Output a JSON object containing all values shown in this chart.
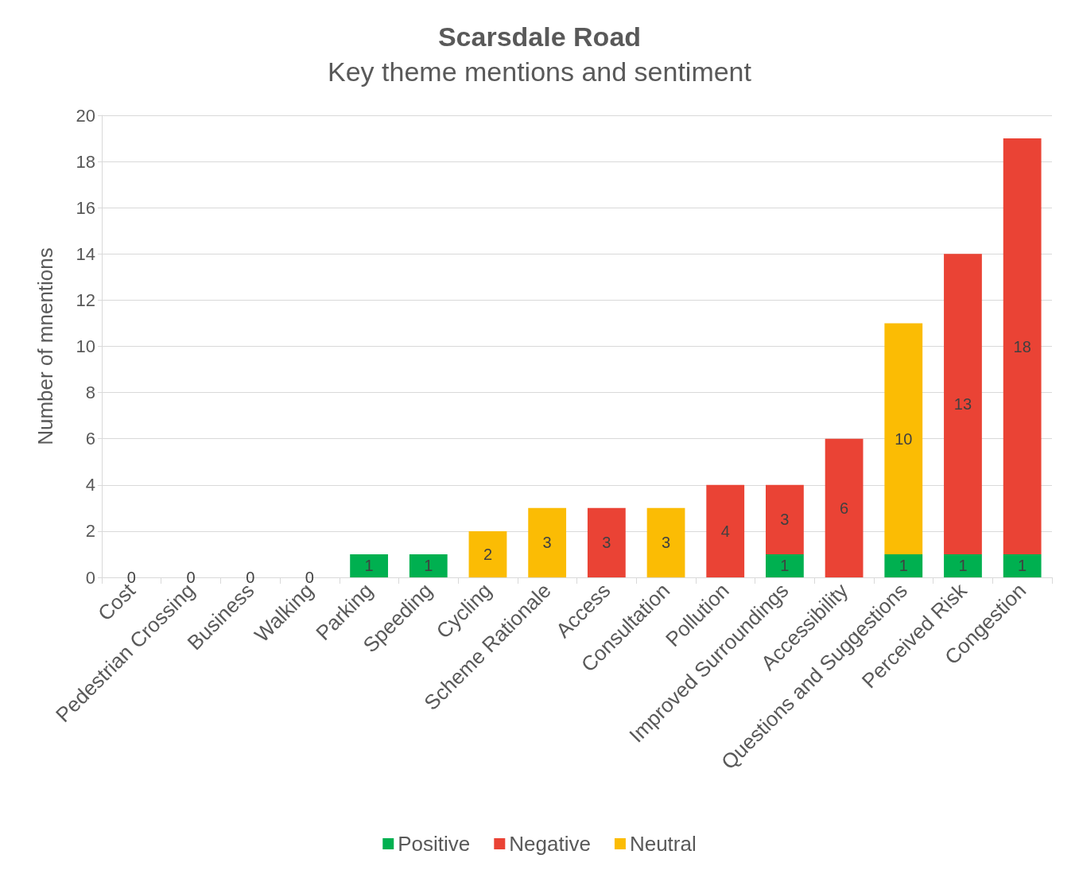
{
  "chart_data": {
    "type": "bar",
    "title": "Scarsdale Road",
    "subtitle": "Key theme mentions and sentiment",
    "ylabel": "Number of mnentions",
    "categories": [
      "Cost",
      "Pedestrian Crossing",
      "Business",
      "Walking",
      "Parking",
      "Speeding",
      "Cycling",
      "Scheme Rationale",
      "Access",
      "Consultation",
      "Pollution",
      "Improved Surroundings",
      "Accessibility",
      "Questions and Suggestions",
      "Perceived Risk",
      "Congestion"
    ],
    "series": [
      {
        "name": "Positive",
        "color": "#00b050",
        "values": [
          0,
          0,
          0,
          0,
          1,
          1,
          0,
          0,
          0,
          0,
          0,
          1,
          0,
          1,
          1,
          1
        ],
        "value_labels": [
          "0",
          "0",
          "0",
          "0",
          "1",
          "1",
          null,
          null,
          null,
          null,
          null,
          "1",
          null,
          "1",
          "1",
          "1"
        ]
      },
      {
        "name": "Negative",
        "color": "#ea4335",
        "values": [
          0,
          0,
          0,
          0,
          0,
          0,
          0,
          0,
          3,
          0,
          4,
          3,
          6,
          0,
          13,
          18
        ],
        "value_labels": [
          null,
          null,
          null,
          null,
          null,
          null,
          null,
          null,
          "3",
          null,
          "4",
          "3",
          "6",
          null,
          "13",
          "18"
        ]
      },
      {
        "name": "Neutral",
        "color": "#fbbc04",
        "values": [
          0,
          0,
          0,
          0,
          0,
          0,
          2,
          3,
          0,
          3,
          0,
          0,
          0,
          10,
          0,
          0
        ],
        "value_labels": [
          null,
          null,
          null,
          null,
          null,
          null,
          "2",
          "3",
          null,
          "3",
          null,
          null,
          null,
          "10",
          null,
          null
        ]
      }
    ],
    "stacked": true,
    "ylim": [
      0,
      20
    ],
    "yticks": [
      0,
      2,
      4,
      6,
      8,
      10,
      12,
      14,
      16,
      18,
      20
    ],
    "grid": "y",
    "legend": "bottom"
  }
}
